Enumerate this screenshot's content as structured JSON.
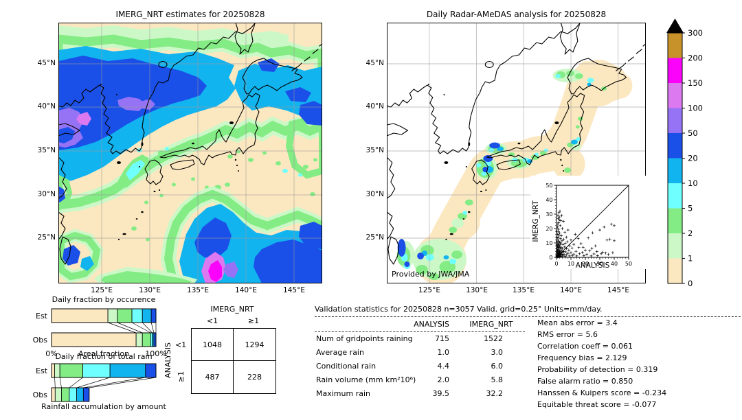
{
  "maps": {
    "left": {
      "title": "IMERG_NRT estimates for 20250828",
      "lat_ticks": [
        "45°N",
        "40°N",
        "35°N",
        "30°N",
        "25°N"
      ],
      "lon_ticks": [
        "125°E",
        "130°E",
        "135°E",
        "140°E",
        "145°E"
      ]
    },
    "right": {
      "title": "Daily Radar-AMeDAS analysis for 20250828",
      "lat_ticks": [
        "45°N",
        "40°N",
        "35°N",
        "30°N",
        "25°N"
      ],
      "lon_ticks": [
        "125°E",
        "130°E",
        "135°E",
        "140°E",
        "145°E"
      ],
      "credit": "Provided by JWA/JMA"
    }
  },
  "colorbar": {
    "overflow_marker": "black-triangle",
    "labels_top_to_bottom": [
      "300",
      "200",
      "150",
      "100",
      "50",
      "20",
      "10",
      "5",
      "2",
      "1",
      "0"
    ],
    "segment_colors_top_to_bottom": [
      "#c8922a",
      "#fb02fb",
      "#dc78f0",
      "#9673f5",
      "#1b50e8",
      "#12b4f0",
      "#70ffff",
      "#84ec84",
      "#ccf8c8",
      "#fce8c0"
    ]
  },
  "chart_data": [
    {
      "type": "bar",
      "id": "occurrence",
      "title": "Daily fraction by occurence",
      "xlabel": "Areal fraction",
      "xlim_labels": [
        "0%",
        "100%"
      ],
      "rows": [
        "Est",
        "Obs"
      ],
      "segment_colors": [
        "#fce8c0",
        "#ccf8c8",
        "#84ec84",
        "#70ffff",
        "#12b4f0",
        "#1b50e8"
      ],
      "series": [
        {
          "name": "Est",
          "fractions": [
            0.54,
            0.09,
            0.14,
            0.1,
            0.085,
            0.045
          ]
        },
        {
          "name": "Obs",
          "fractions": [
            0.81,
            0.06,
            0.08,
            0.015,
            0.015,
            0.02
          ]
        }
      ]
    },
    {
      "type": "bar",
      "id": "total_rain",
      "title": "Daily fraction of total rain",
      "caption": "Rainfall accumulation by amount",
      "rows": [
        "Est",
        "Obs"
      ],
      "segment_colors": [
        "#fce8c0",
        "#ccf8c8",
        "#84ec84",
        "#70ffff",
        "#12b4f0",
        "#1b50e8"
      ],
      "series": [
        {
          "name": "Est",
          "fractions": [
            0.03,
            0.05,
            0.22,
            0.26,
            0.34,
            0.1
          ]
        },
        {
          "name": "Obs",
          "fractions": [
            0.035,
            0.06,
            0.075,
            0.07,
            0.065,
            0.055
          ]
        }
      ]
    },
    {
      "type": "table",
      "id": "contingency",
      "col_group": "IMERG_NRT",
      "row_group": "ANALYSIS",
      "col_labels": [
        "<1",
        "≥1"
      ],
      "row_labels": [
        "<1",
        "≥1"
      ],
      "values": [
        [
          "1048",
          "1294"
        ],
        [
          "487",
          "228"
        ]
      ]
    },
    {
      "type": "scatter",
      "id": "inset_scatter",
      "xlabel": "ANALYSIS",
      "ylabel": "IMERG_NRT",
      "xlim": [
        0,
        50
      ],
      "ylim": [
        0,
        50
      ],
      "ticks": [
        0,
        10,
        20,
        30,
        40,
        50
      ],
      "diagonal": true,
      "points": [
        [
          0.2,
          0.4
        ],
        [
          0.3,
          1.2
        ],
        [
          0.3,
          2.8
        ],
        [
          0.4,
          0.7
        ],
        [
          0.4,
          4.5
        ],
        [
          0.5,
          1.8
        ],
        [
          0.5,
          6.5
        ],
        [
          0.5,
          11
        ],
        [
          0.6,
          0.3
        ],
        [
          0.6,
          3.2
        ],
        [
          0.6,
          13.5
        ],
        [
          0.7,
          2.2
        ],
        [
          0.7,
          8
        ],
        [
          0.7,
          21
        ],
        [
          0.8,
          0.9
        ],
        [
          0.8,
          4.8
        ],
        [
          0.8,
          16
        ],
        [
          0.9,
          1.4
        ],
        [
          0.9,
          9.5
        ],
        [
          0.9,
          23
        ],
        [
          1,
          0.4
        ],
        [
          1,
          3.6
        ],
        [
          1,
          7
        ],
        [
          1,
          29
        ],
        [
          1.1,
          2
        ],
        [
          1.1,
          12
        ],
        [
          1.1,
          27
        ],
        [
          1.2,
          5.5
        ],
        [
          1.2,
          18
        ],
        [
          1.3,
          0.8
        ],
        [
          1.3,
          9
        ],
        [
          1.3,
          19.5
        ],
        [
          1.4,
          3
        ],
        [
          1.4,
          14
        ],
        [
          1.5,
          1.6
        ],
        [
          1.5,
          6.8
        ],
        [
          1.5,
          24
        ],
        [
          1.6,
          2.6
        ],
        [
          1.6,
          11
        ],
        [
          1.7,
          0.5
        ],
        [
          1.7,
          4.2
        ],
        [
          1.7,
          31
        ],
        [
          1.8,
          8.5
        ],
        [
          1.8,
          15.5
        ],
        [
          1.9,
          2.1
        ],
        [
          2,
          0.8
        ],
        [
          2,
          5
        ],
        [
          2,
          10.5
        ],
        [
          2,
          28
        ],
        [
          2.1,
          3.4
        ],
        [
          2.2,
          7.5
        ],
        [
          2.2,
          17
        ],
        [
          2.3,
          1.2
        ],
        [
          2.4,
          4
        ],
        [
          2.5,
          9
        ],
        [
          2.5,
          22
        ],
        [
          2.6,
          2.4
        ],
        [
          2.7,
          6
        ],
        [
          2.8,
          13
        ],
        [
          2.9,
          0.6
        ],
        [
          3,
          3.1
        ],
        [
          3,
          10
        ],
        [
          3,
          25.5
        ],
        [
          3.2,
          1.8
        ],
        [
          3.3,
          7
        ],
        [
          3.4,
          15
        ],
        [
          3.6,
          4.6
        ],
        [
          3.7,
          2.2
        ],
        [
          3.8,
          11.5
        ],
        [
          4,
          0.9
        ],
        [
          4,
          6.2
        ],
        [
          4,
          20
        ],
        [
          4.3,
          3.5
        ],
        [
          4.5,
          8.8
        ],
        [
          4.7,
          1.5
        ],
        [
          4.8,
          25
        ],
        [
          5,
          4
        ],
        [
          5,
          12.5
        ],
        [
          5.3,
          2
        ],
        [
          5.6,
          7.2
        ],
        [
          5.8,
          17.5
        ],
        [
          6,
          0.7
        ],
        [
          6,
          9.8
        ],
        [
          6.4,
          3.8
        ],
        [
          6.8,
          14
        ],
        [
          7,
          1.8
        ],
        [
          7,
          6
        ],
        [
          7.5,
          10.8
        ],
        [
          8,
          2.8
        ],
        [
          8,
          19
        ],
        [
          8.5,
          5
        ],
        [
          9,
          1
        ],
        [
          9.2,
          8
        ],
        [
          10,
          3.2
        ],
        [
          10,
          12
        ],
        [
          10.8,
          6.5
        ],
        [
          11,
          1.4
        ],
        [
          12,
          9
        ],
        [
          12,
          2.3
        ],
        [
          13,
          16
        ],
        [
          13.5,
          4.2
        ],
        [
          14,
          1
        ],
        [
          15,
          13
        ],
        [
          15.5,
          6.8
        ],
        [
          16,
          2.5
        ],
        [
          17,
          9.5
        ],
        [
          18,
          3.4
        ],
        [
          18.5,
          7
        ],
        [
          19,
          1.2
        ],
        [
          20,
          5
        ],
        [
          21,
          2.1
        ],
        [
          22,
          13.5
        ],
        [
          23,
          4.5
        ],
        [
          24,
          1
        ],
        [
          24.5,
          6.2
        ],
        [
          25,
          17
        ],
        [
          26,
          2.4
        ],
        [
          27,
          8
        ],
        [
          28,
          4
        ],
        [
          28.5,
          1.2
        ],
        [
          30,
          19
        ],
        [
          31,
          2.5
        ],
        [
          32,
          3.6
        ],
        [
          33,
          21
        ],
        [
          34,
          3
        ],
        [
          35,
          12
        ],
        [
          36,
          2
        ],
        [
          37,
          12.5
        ],
        [
          38,
          23
        ],
        [
          39,
          3.2
        ],
        [
          40,
          22
        ],
        [
          40,
          11.5
        ],
        [
          3.5,
          29
        ],
        [
          2.4,
          32
        ],
        [
          1.9,
          26
        ],
        [
          0.4,
          18
        ],
        [
          0.3,
          8.5
        ],
        [
          0.2,
          14
        ]
      ]
    },
    {
      "type": "table",
      "id": "validation",
      "title": "Validation statistics for 20250828  n=3057 Valid. grid=0.25° Units=mm/day.",
      "columns": [
        "ANALYSIS",
        "IMERG_NRT"
      ],
      "rows": [
        [
          "Num of gridpoints raining",
          "715",
          "1522"
        ],
        [
          "Average rain",
          "1.0",
          "3.0"
        ],
        [
          "Conditional rain",
          "4.4",
          "6.0"
        ],
        [
          "Rain volume (mm km²10⁶)",
          "2.0",
          "5.8"
        ],
        [
          "Maximum rain",
          "39.5",
          "32.2"
        ]
      ],
      "extra_stats": [
        [
          "Mean abs error",
          "3.4"
        ],
        [
          "RMS error",
          "5.6"
        ],
        [
          "Correlation coeff",
          "0.061"
        ],
        [
          "Frequency bias",
          "2.129"
        ],
        [
          "Probability of detection",
          "0.319"
        ],
        [
          "False alarm ratio",
          "0.850"
        ],
        [
          "Hanssen & Kuipers score",
          "-0.234"
        ],
        [
          "Equitable threat score",
          "-0.077"
        ]
      ]
    }
  ]
}
